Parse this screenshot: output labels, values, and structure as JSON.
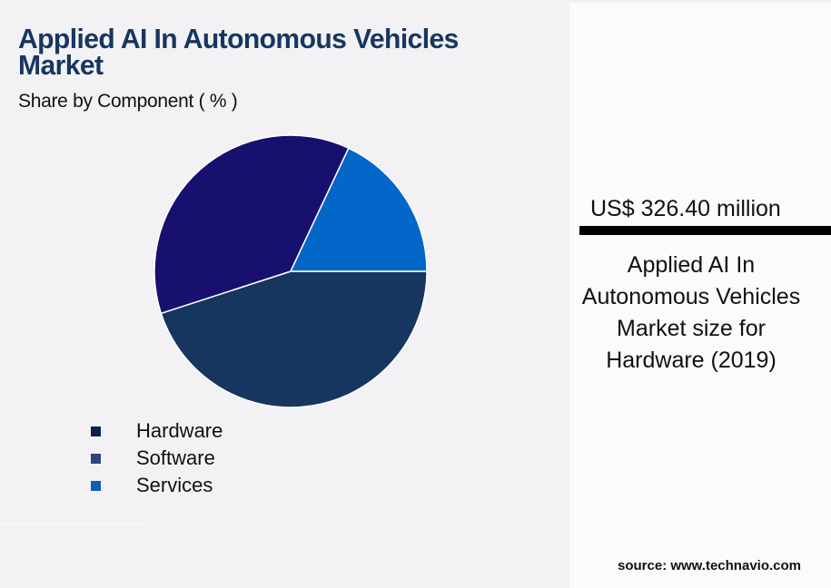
{
  "header": {
    "title": "Applied AI In Autonomous Vehicles Market",
    "subtitle": "Share by Component ( % )"
  },
  "legend": {
    "items": [
      {
        "label": "Hardware",
        "color": "#0f1f4f"
      },
      {
        "label": "Software",
        "color": "#2f437d"
      },
      {
        "label": "Services",
        "color": "#0d5fb5"
      }
    ]
  },
  "highlight": {
    "amount": "US$ 326.40 million",
    "caption": "Applied AI In Autonomous Vehicles Market size for Hardware (2019)"
  },
  "footer": {
    "source": "source: www.technavio.com"
  },
  "colors": {
    "background": "#f2f2f5",
    "panel": "#fbfbfb",
    "title": "#17365f"
  },
  "chart_data": {
    "type": "pie",
    "title": "Applied AI In Autonomous Vehicles Market",
    "subtitle": "Share by Component ( % )",
    "categories": [
      "Hardware",
      "Software",
      "Services"
    ],
    "values": [
      45,
      37,
      18
    ],
    "slice_colors": [
      "#17365f",
      "#18106f",
      "#0366c9"
    ],
    "start_angle_deg": 0,
    "direction": "clockwise",
    "legend_position": "bottom-left",
    "annotation": "US$ 326.40 million — Applied AI In Autonomous Vehicles Market size for Hardware (2019)"
  }
}
